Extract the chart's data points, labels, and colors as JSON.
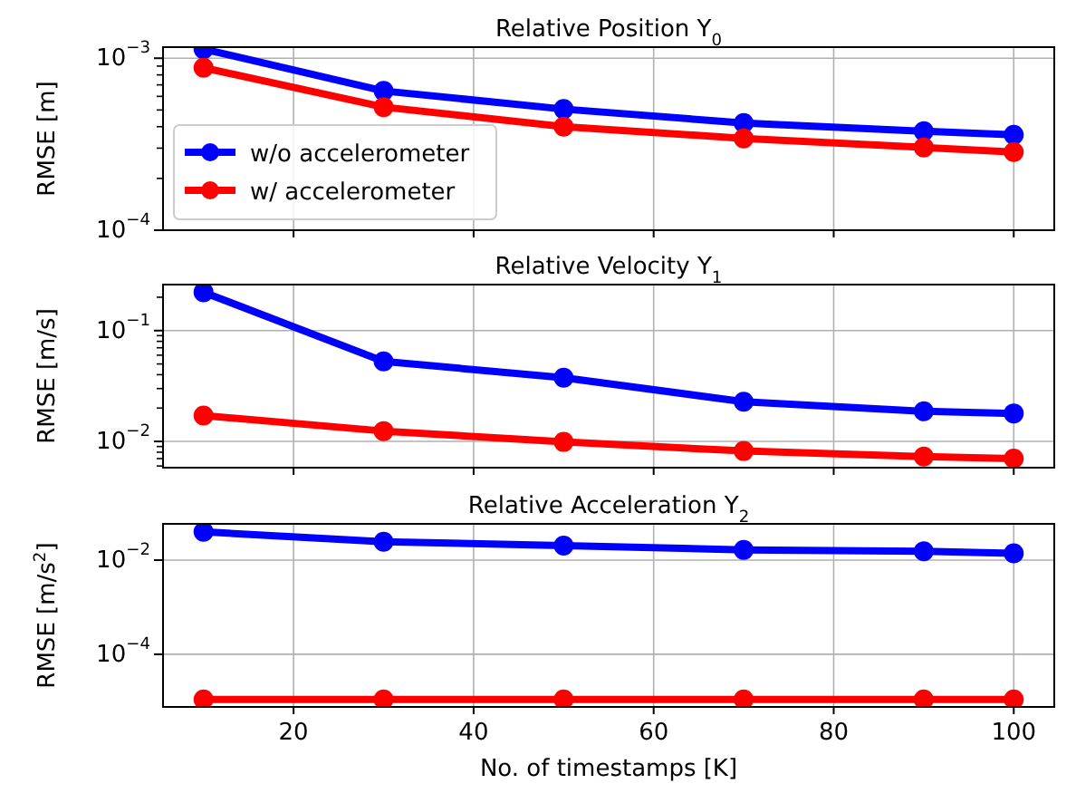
{
  "chart_data": [
    {
      "type": "line",
      "title": "Relative Position Y$_{0}$",
      "ylabel": "RMSE [m]",
      "x": [
        10,
        30,
        50,
        70,
        90,
        100
      ],
      "xlim": [
        5.5,
        104.5
      ],
      "xticks": [
        20,
        40,
        60,
        80,
        100
      ],
      "ylim": [
        0.0001,
        0.00116
      ],
      "log": "y",
      "grid": true,
      "marker": "circle",
      "legend": "bottom left",
      "tick_labels": "y",
      "yticks": [
        {
          "value": 0.0001,
          "label": "10$^{−4}$"
        },
        {
          "value": 0.0002,
          "label": null
        },
        {
          "value": 0.0003,
          "label": null
        },
        {
          "value": 0.0004,
          "label": null
        },
        {
          "value": 0.0005,
          "label": null
        },
        {
          "value": 0.0006,
          "label": null
        },
        {
          "value": 0.0007,
          "label": null
        },
        {
          "value": 0.0008,
          "label": null
        },
        {
          "value": 0.0009,
          "label": null
        },
        {
          "value": 0.001,
          "label": "10$^{−3}$"
        }
      ],
      "series": [
        {
          "name": "w/o accelerometer",
          "color": "#0000ff",
          "values": [
            0.00113,
            0.000645,
            0.000506,
            0.00042,
            0.000376,
            0.000359
          ]
        },
        {
          "name": "w/ accelerometer",
          "color": "#ff0000",
          "values": [
            0.00088,
            0.00052,
            0.0004,
            0.000342,
            0.000303,
            0.000285
          ]
        }
      ]
    },
    {
      "type": "line",
      "title": "Relative Velocity Y$_{1}$",
      "ylabel": "RMSE [m/s]",
      "x": [
        10,
        30,
        50,
        70,
        90,
        100
      ],
      "xlim": [
        5.5,
        104.5
      ],
      "xticks": [
        20,
        40,
        60,
        80,
        100
      ],
      "ylim": [
        0.0058,
        0.26
      ],
      "log": "y",
      "grid": true,
      "marker": "circle",
      "tick_labels": "y",
      "yticks": [
        {
          "value": 0.006,
          "label": null
        },
        {
          "value": 0.007,
          "label": null
        },
        {
          "value": 0.008,
          "label": null
        },
        {
          "value": 0.009,
          "label": null
        },
        {
          "value": 0.01,
          "label": "10$^{−2}$"
        },
        {
          "value": 0.02,
          "label": null
        },
        {
          "value": 0.03,
          "label": null
        },
        {
          "value": 0.04,
          "label": null
        },
        {
          "value": 0.05,
          "label": null
        },
        {
          "value": 0.06,
          "label": null
        },
        {
          "value": 0.07,
          "label": null
        },
        {
          "value": 0.08,
          "label": null
        },
        {
          "value": 0.09,
          "label": null
        },
        {
          "value": 0.1,
          "label": "10$^{−1}$"
        },
        {
          "value": 0.2,
          "label": null
        }
      ],
      "series": [
        {
          "color": "#0000ff",
          "values": [
            0.222,
            0.0527,
            0.0376,
            0.0228,
            0.0187,
            0.0179
          ]
        },
        {
          "color": "#ff0000",
          "values": [
            0.0171,
            0.0124,
            0.0099,
            0.0082,
            0.0073,
            0.007
          ]
        }
      ]
    },
    {
      "type": "line",
      "title": "Relative Acceleration Y$_{2}$",
      "ylabel": "RMSE [m/s$^{2}$]",
      "xlabel": "No. of timestamps [K]",
      "x": [
        10,
        30,
        50,
        70,
        90,
        100
      ],
      "xlim": [
        5.5,
        104.5
      ],
      "xticks": [
        20,
        40,
        60,
        80,
        100
      ],
      "ylim": [
        7.6e-06,
        0.059
      ],
      "log": "y",
      "grid": true,
      "marker": "circle",
      "yticks": [
        {
          "value": 0.0001,
          "label": "10$^{−4}$"
        },
        {
          "value": 0.01,
          "label": "10$^{−2}$"
        }
      ],
      "series": [
        {
          "color": "#0000ff",
          "values": [
            0.04,
            0.0245,
            0.0204,
            0.0165,
            0.0154,
            0.014
          ]
        },
        {
          "color": "#ff0000",
          "values": [
            1.1e-05,
            1.1e-05,
            1.1e-05,
            1.1e-05,
            1.1e-05,
            1.1e-05
          ]
        }
      ]
    }
  ]
}
